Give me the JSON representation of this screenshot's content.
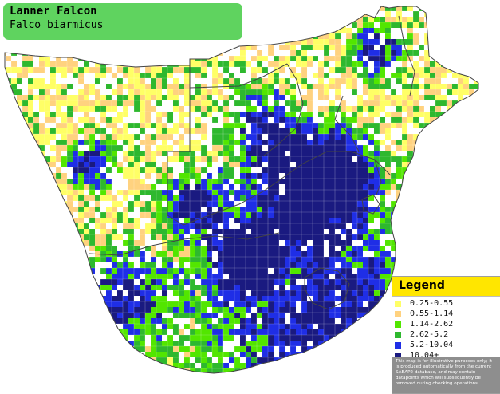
{
  "title": {
    "common_name": "Lanner Falcon",
    "scientific_name": "Falco biarmicus"
  },
  "legend": {
    "heading": "Legend",
    "items": [
      {
        "label": "0.25-0.55",
        "color": "#ffff66"
      },
      {
        "label": "0.55-1.14",
        "color": "#ffd27f"
      },
      {
        "label": "1.14-2.62",
        "color": "#52e600"
      },
      {
        "label": "2.62-5.2",
        "color": "#2eb82e"
      },
      {
        "label": "5.2-10.04",
        "color": "#1f2ee6"
      },
      {
        "label": "10.04+",
        "color": "#1a1a80"
      }
    ],
    "disclaimer": "This map is for illustrative purposes only; it is produced automatically from the current SABAP2 database, and may contain datapoints which will subsequently be removed during checking operations."
  },
  "colors": {
    "land": "#ffffff",
    "borders": "#444444",
    "grid": "#ffffff",
    "title_bg": "#5fd35f",
    "legend_header_bg": "#ffe600",
    "disclaimer_bg": "#8e8e8e"
  }
}
